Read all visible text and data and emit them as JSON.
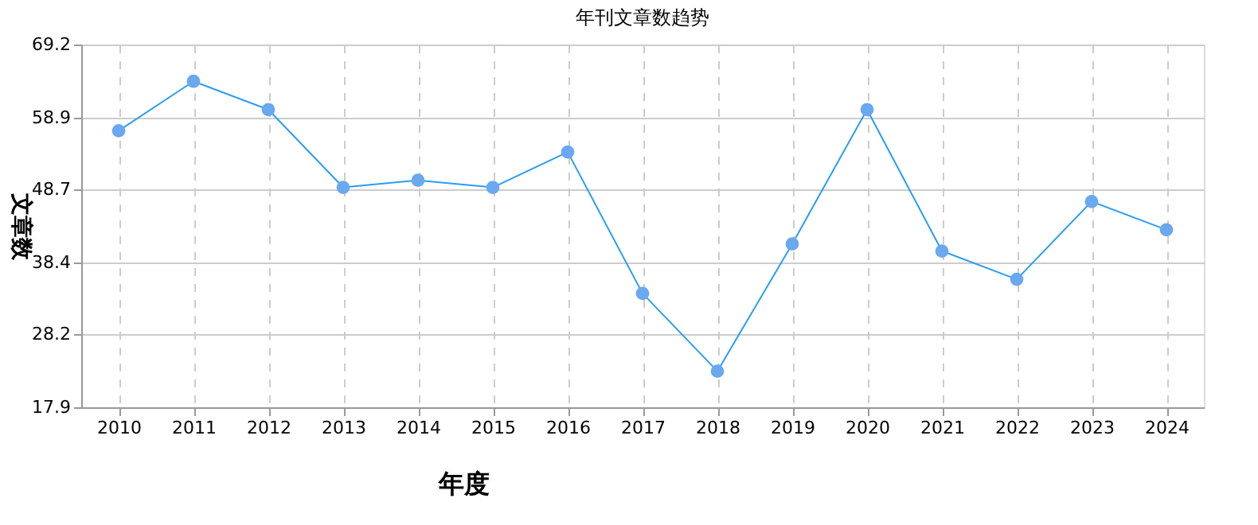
{
  "chart_data": {
    "type": "line",
    "title": "年刊文章数趋势",
    "xlabel": "年度",
    "ylabel": "文章数",
    "categories": [
      "2010",
      "2011",
      "2012",
      "2013",
      "2014",
      "2015",
      "2016",
      "2017",
      "2018",
      "2019",
      "2020",
      "2021",
      "2022",
      "2023",
      "2024"
    ],
    "series": [
      {
        "color": "#2a9df4",
        "values": [
          57,
          64,
          60,
          49,
          50,
          49,
          54,
          34,
          23,
          41,
          60,
          40,
          36,
          47,
          43
        ]
      }
    ],
    "ylim": [
      17.9,
      69.2
    ],
    "yticks": [
      17.9,
      28.2,
      38.4,
      48.7,
      58.9,
      69.2
    ],
    "grid": true,
    "marker": "circle",
    "line_style": "solid"
  }
}
